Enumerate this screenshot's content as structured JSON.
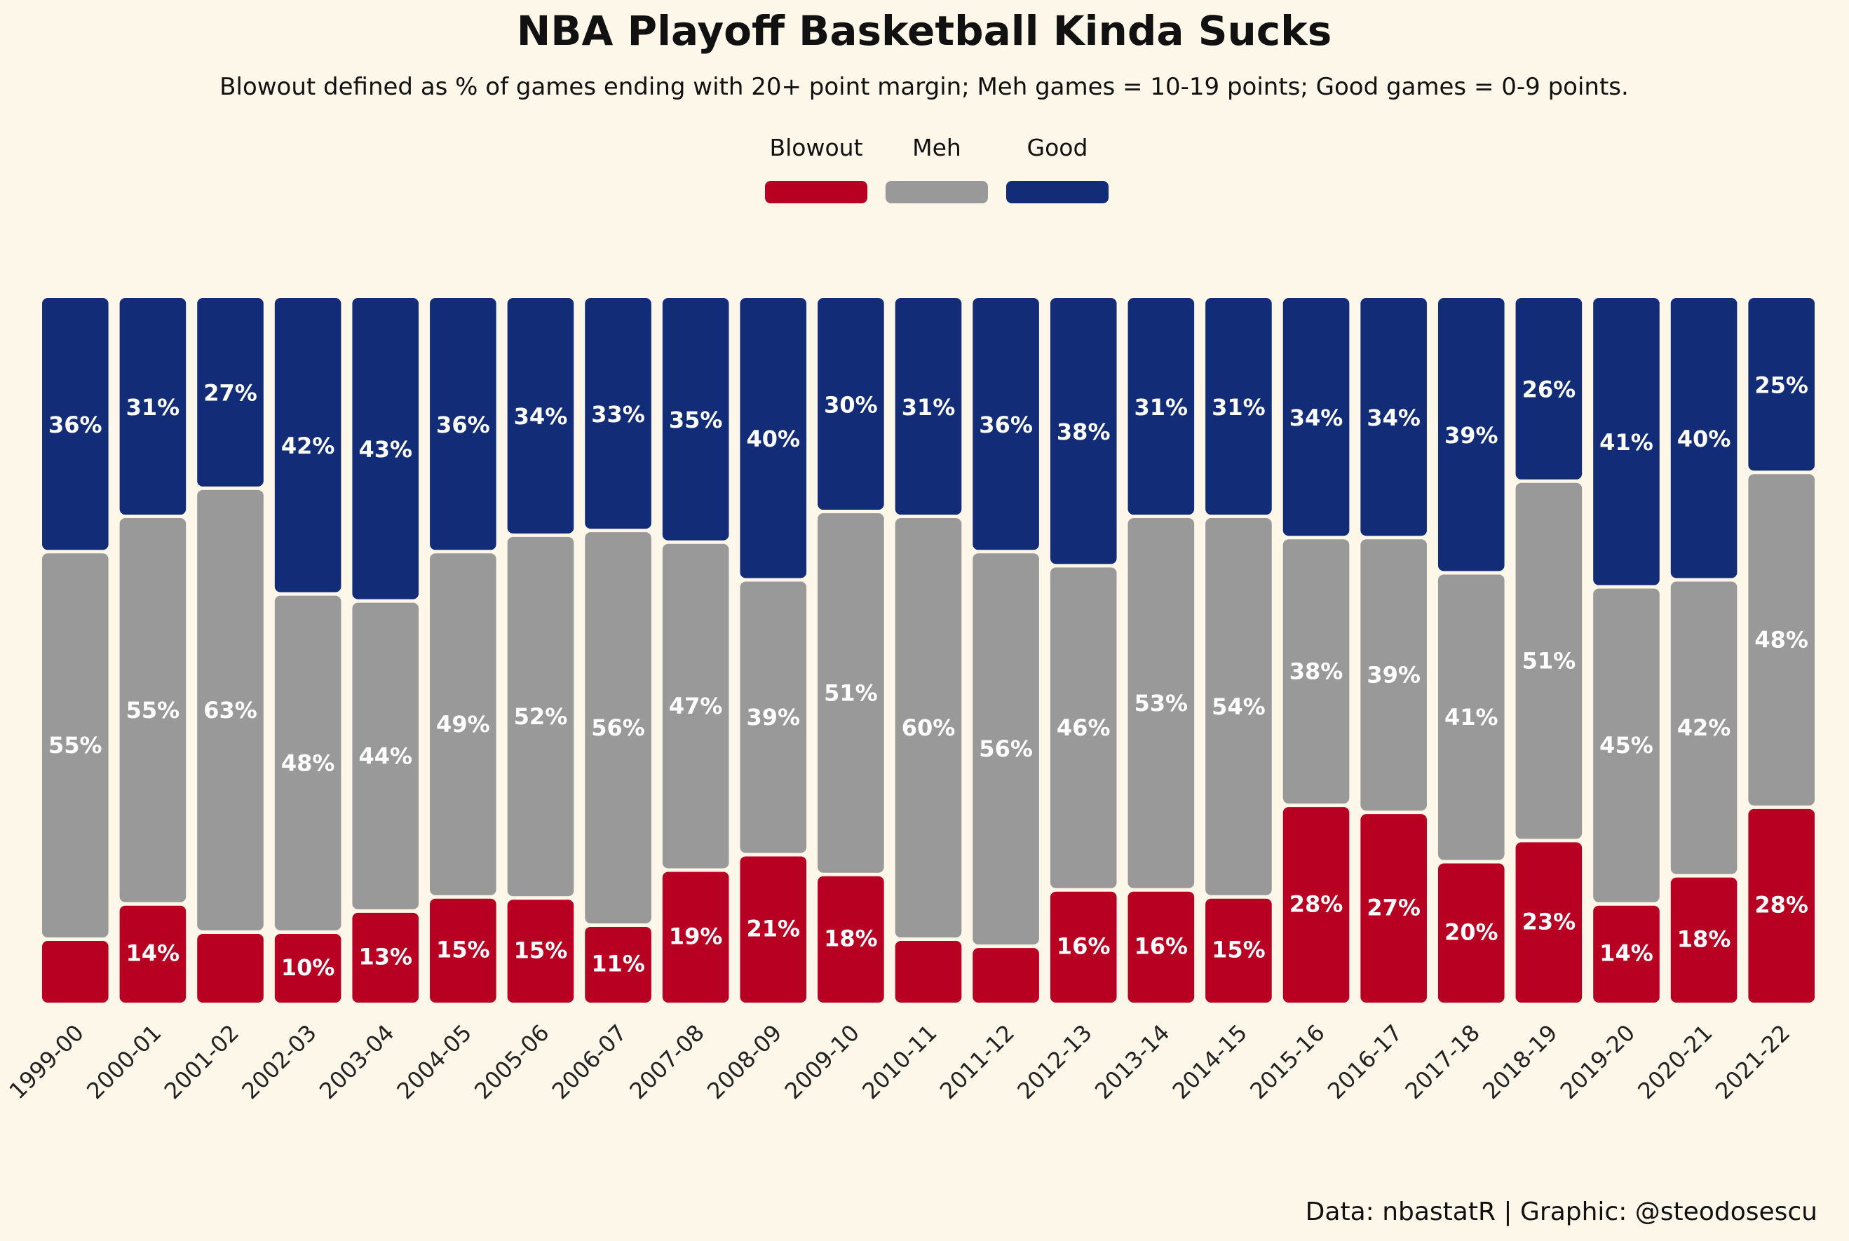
{
  "title": "NBA Playoff Basketball Kinda Sucks",
  "subtitle": "Blowout defined as % of games ending with 20+ point margin; Meh games = 10-19 points; Good games = 0-9 points.",
  "caption": "Data: nbastatR | Graphic: @steodosescu",
  "colors": {
    "background": "#fdf7ea",
    "Blowout": "#b80022",
    "Meh": "#999999",
    "Good": "#132c77"
  },
  "chart_data": {
    "type": "bar",
    "stacked": true,
    "normalized": true,
    "legend_position": "top",
    "grid": false,
    "ylim": [
      0,
      100
    ],
    "categories": [
      "1999-00",
      "2000-01",
      "2001-02",
      "2002-03",
      "2003-04",
      "2004-05",
      "2005-06",
      "2006-07",
      "2007-08",
      "2008-09",
      "2009-10",
      "2010-11",
      "2011-12",
      "2012-13",
      "2013-14",
      "2014-15",
      "2015-16",
      "2016-17",
      "2017-18",
      "2018-19",
      "2019-20",
      "2020-21",
      "2021-22"
    ],
    "series": [
      {
        "name": "Blowout",
        "values": [
          9,
          14,
          10,
          10,
          13,
          15,
          15,
          11,
          19,
          21,
          18,
          9,
          8,
          16,
          16,
          15,
          28,
          27,
          20,
          23,
          14,
          18,
          28
        ],
        "labels": [
          "",
          "14%",
          "",
          "10%",
          "13%",
          "15%",
          "15%",
          "11%",
          "19%",
          "21%",
          "18%",
          "",
          "",
          "16%",
          "16%",
          "15%",
          "28%",
          "27%",
          "20%",
          "23%",
          "14%",
          "18%",
          "28%"
        ]
      },
      {
        "name": "Meh",
        "values": [
          55,
          55,
          63,
          48,
          44,
          49,
          52,
          56,
          47,
          39,
          51,
          60,
          56,
          46,
          53,
          54,
          38,
          39,
          41,
          51,
          45,
          42,
          48
        ],
        "labels": [
          "55%",
          "55%",
          "63%",
          "48%",
          "44%",
          "49%",
          "52%",
          "56%",
          "47%",
          "39%",
          "51%",
          "60%",
          "56%",
          "46%",
          "53%",
          "54%",
          "38%",
          "39%",
          "41%",
          "51%",
          "45%",
          "42%",
          "48%"
        ]
      },
      {
        "name": "Good",
        "values": [
          36,
          31,
          27,
          42,
          43,
          36,
          34,
          33,
          35,
          40,
          30,
          31,
          36,
          38,
          31,
          31,
          34,
          34,
          39,
          26,
          41,
          40,
          25
        ],
        "labels": [
          "36%",
          "31%",
          "27%",
          "42%",
          "43%",
          "36%",
          "34%",
          "33%",
          "35%",
          "40%",
          "30%",
          "31%",
          "36%",
          "38%",
          "31%",
          "31%",
          "34%",
          "34%",
          "39%",
          "26%",
          "41%",
          "40%",
          "25%"
        ]
      }
    ]
  }
}
